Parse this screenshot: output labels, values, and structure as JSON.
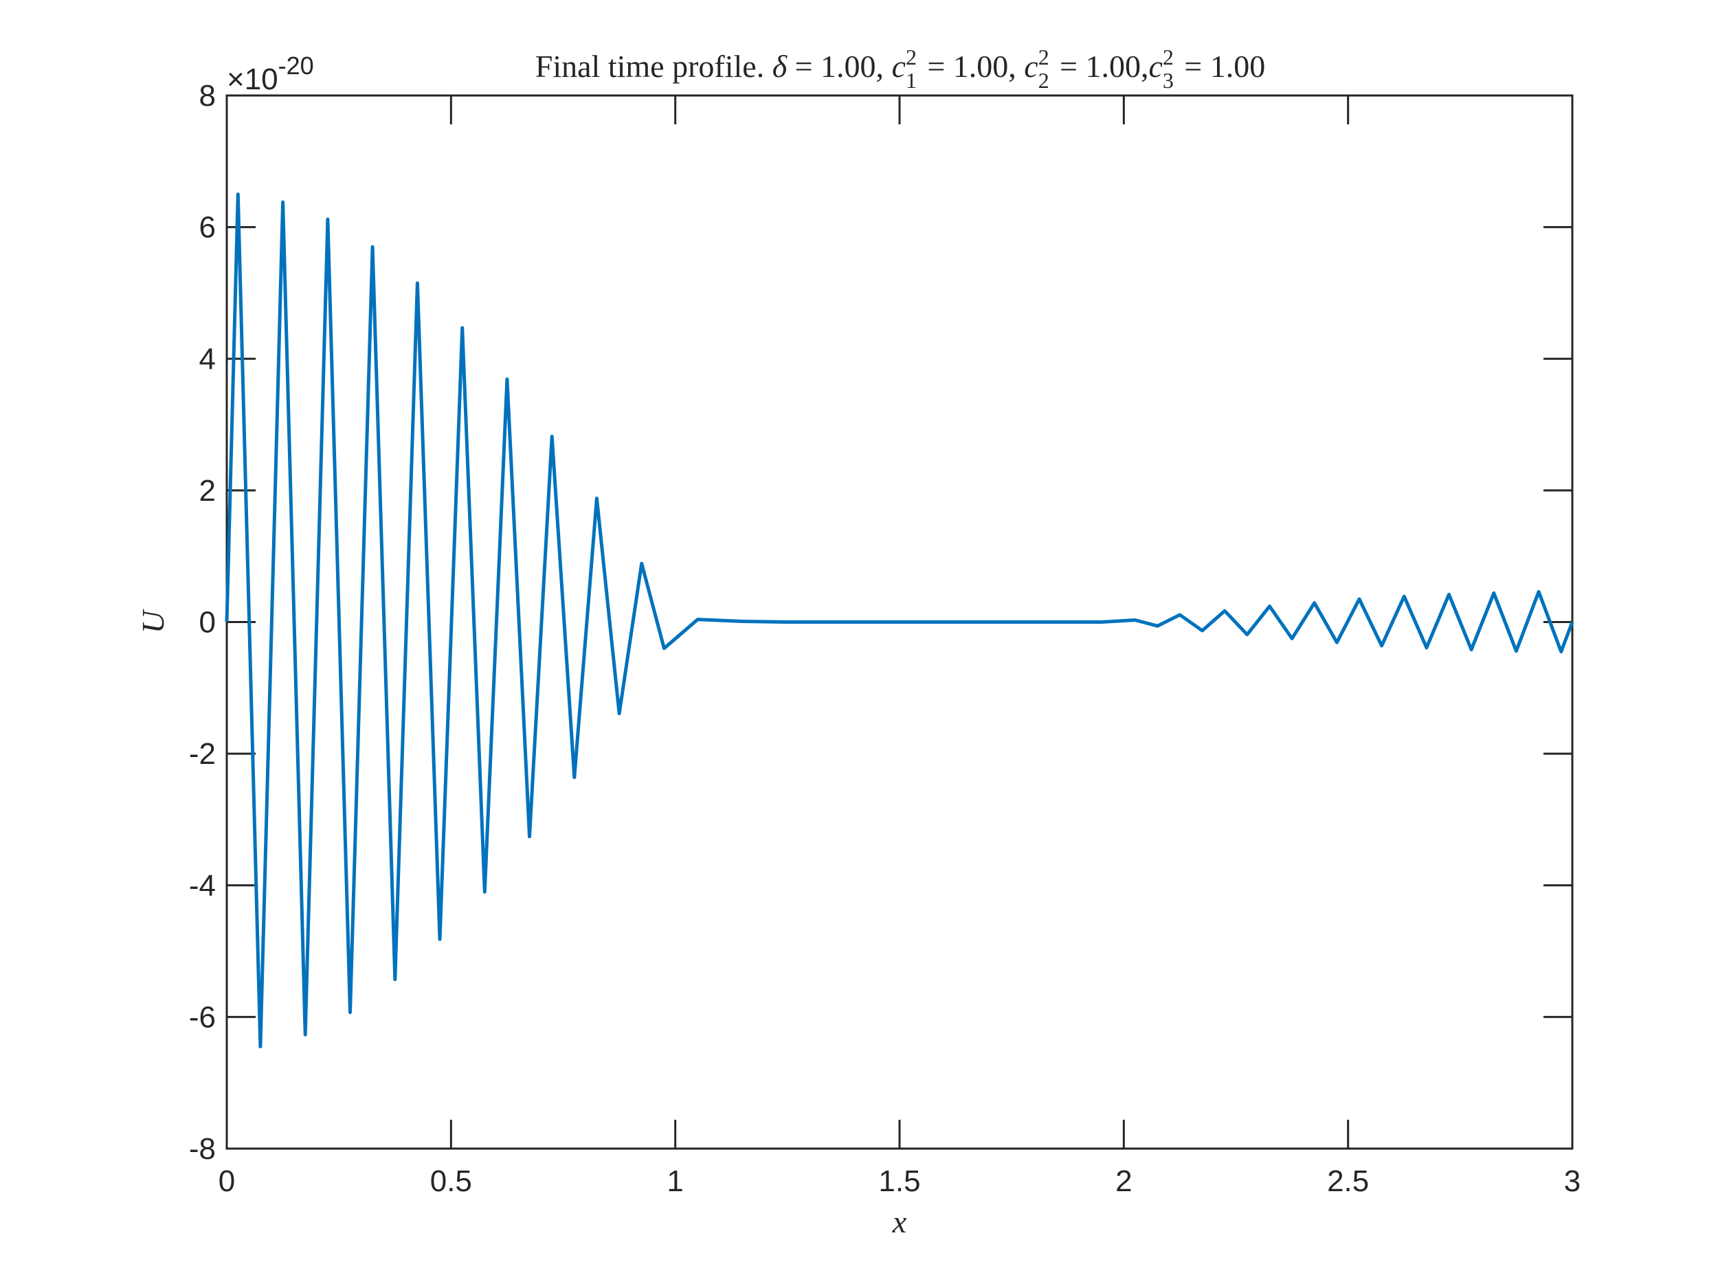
{
  "chart_data": {
    "type": "line",
    "title_text": "Final time profile.",
    "title_params": [
      {
        "symbol": "δ",
        "value": "1.00"
      },
      {
        "base": "c",
        "sub": "1",
        "sup": "2",
        "value": "1.00"
      },
      {
        "base": "c",
        "sub": "2",
        "sup": "2",
        "value": "1.00"
      },
      {
        "base": "c",
        "sub": "3",
        "sup": "2",
        "value": "1.00"
      }
    ],
    "xlabel": "x",
    "ylabel": "U",
    "exponent_label": {
      "prefix": "×10",
      "power": "-20"
    },
    "xlim": [
      0,
      3
    ],
    "ylim": [
      -8,
      8
    ],
    "xticks": [
      0,
      0.5,
      1,
      1.5,
      2,
      2.5,
      3
    ],
    "xtick_labels": [
      "0",
      "0.5",
      "1",
      "1.5",
      "2",
      "2.5",
      "3"
    ],
    "yticks": [
      -8,
      -6,
      -4,
      -2,
      0,
      2,
      4,
      6,
      8
    ],
    "ytick_labels": [
      "-8",
      "-6",
      "-4",
      "-2",
      "0",
      "2",
      "4",
      "6",
      "8"
    ],
    "grid": false,
    "colors": {
      "line": "#0072BD",
      "axes": "#262626"
    },
    "series": [
      {
        "x": [
          0,
          0.025,
          0.075,
          0.125,
          0.175,
          0.225,
          0.275,
          0.325,
          0.375,
          0.425,
          0.475,
          0.525,
          0.575,
          0.625,
          0.675,
          0.725,
          0.775,
          0.825,
          0.875,
          0.925,
          0.975,
          1.05,
          1.15,
          1.25,
          1.35,
          1.45,
          1.55,
          1.65,
          1.75,
          1.85,
          1.95,
          2.025,
          2.075,
          2.125,
          2.175,
          2.225,
          2.275,
          2.325,
          2.375,
          2.425,
          2.475,
          2.525,
          2.575,
          2.625,
          2.675,
          2.725,
          2.775,
          2.825,
          2.875,
          2.925,
          2.975,
          3.0
        ],
        "y": [
          0,
          6.5,
          -6.45,
          6.38,
          -6.27,
          6.12,
          -5.93,
          5.7,
          -5.43,
          5.15,
          -4.82,
          4.47,
          -4.1,
          3.69,
          -3.26,
          2.82,
          -2.36,
          1.88,
          -1.39,
          0.89,
          -0.4,
          0.04,
          0.01,
          0.0,
          0.0,
          0.0,
          0.0,
          0.0,
          0.0,
          0.0,
          0.0,
          0.03,
          -0.06,
          0.11,
          -0.13,
          0.17,
          -0.19,
          0.24,
          -0.25,
          0.29,
          -0.31,
          0.35,
          -0.36,
          0.39,
          -0.39,
          0.42,
          -0.42,
          0.44,
          -0.44,
          0.46,
          -0.45,
          0.0
        ]
      }
    ]
  }
}
